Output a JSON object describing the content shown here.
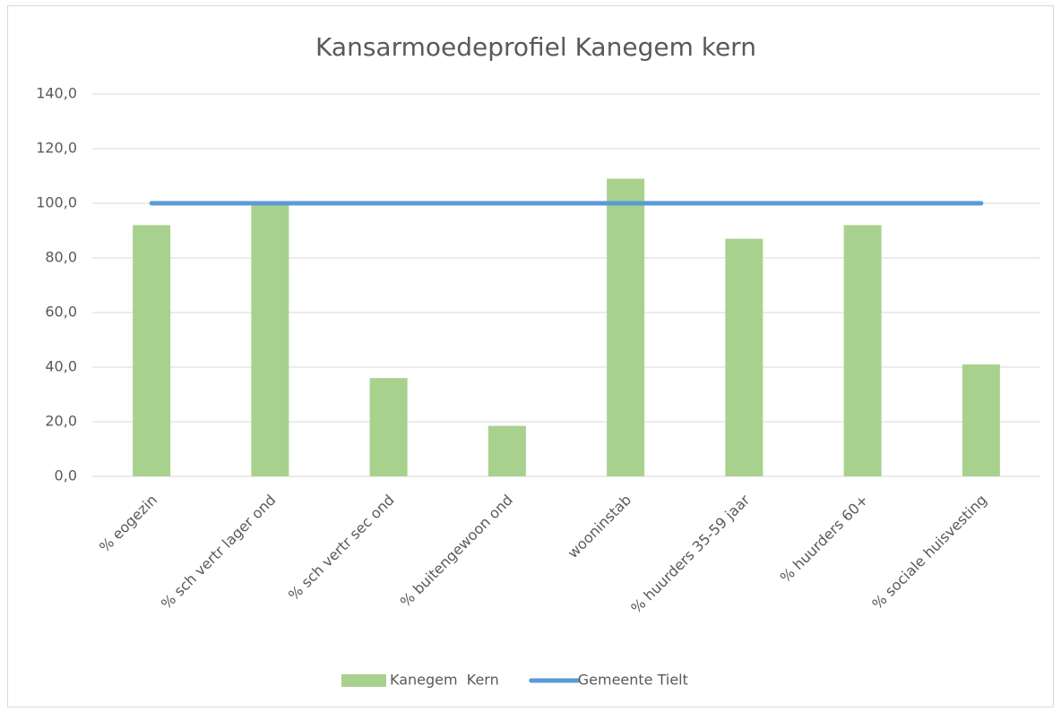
{
  "chart_data": {
    "type": "bar",
    "title": "Kansarmoedeprofiel Kanegem kern",
    "categories": [
      "% eogezin",
      "% sch vertr lager ond",
      "% sch vertr sec ond",
      "% buitengewoon ond",
      "wooninstab",
      "% huurders 35-59 jaar",
      "% huurders 60+",
      "% sociale huisvesting"
    ],
    "series": [
      {
        "name": "Kanegem  Kern",
        "type": "bar",
        "color": "#a9d18e",
        "values": [
          92,
          100,
          36,
          18.5,
          109,
          87,
          92,
          41
        ]
      },
      {
        "name": "Gemeente Tielt",
        "type": "line",
        "color": "#5b9bd5",
        "values": [
          100,
          100,
          100,
          100,
          100,
          100,
          100,
          100
        ]
      }
    ],
    "ylim": [
      0,
      140
    ],
    "yticks": [
      {
        "value": 0,
        "label": "0,0"
      },
      {
        "value": 20,
        "label": "20,0"
      },
      {
        "value": 40,
        "label": "40,0"
      },
      {
        "value": 60,
        "label": "60,0"
      },
      {
        "value": 80,
        "label": "80,0"
      },
      {
        "value": 100,
        "label": "100,0"
      },
      {
        "value": 120,
        "label": "120,0"
      },
      {
        "value": 140,
        "label": "140,0"
      }
    ],
    "grid": true,
    "legend": "bottom"
  }
}
